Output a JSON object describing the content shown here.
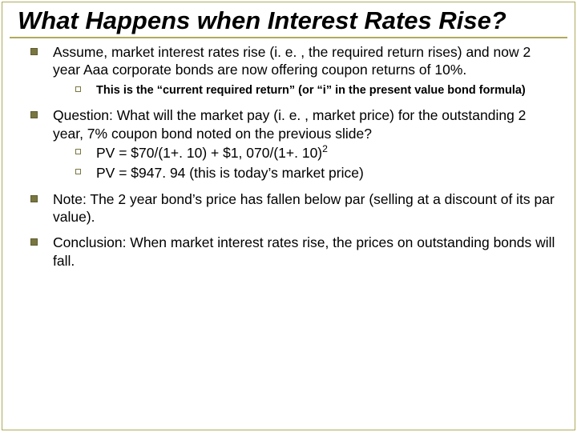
{
  "title": "What Happens when Interest Rates Rise?",
  "bullets": {
    "b1a": "Assume, market interest rates rise (i. e. , the required return rises) and now 2 year Aaa corporate bonds are now offering coupon returns of 10%.",
    "b1a_sub": "This is the “current  required return” (or “i” in the present value bond formula)",
    "b1b": "Question:  What will the market pay (i. e. , market price) for the outstanding 2 year, 7% coupon bond noted on the previous slide?",
    "b1b_sub1_pre": "PV = $70/(1+. 10) + $1, 070/(1+. 10)",
    "b1b_sub1_sup": "2",
    "b1b_sub2": "PV = $947. 94 (this is today’s market price)",
    "b1c": "Note: The 2 year bond’s price has fallen below par (selling at a discount of its par value).",
    "b1d": "Conclusion:  When market interest rates rise, the prices on outstanding bonds will fall."
  },
  "colors": {
    "accent": "#b0aa5a",
    "bullet_fill": "#7a7640",
    "text": "#000000",
    "bg": "#ffffff"
  },
  "typography": {
    "title_fontsize": 31,
    "body_fontsize": 17.5,
    "sub_fontsize": 14.5,
    "title_style": "bold italic"
  }
}
